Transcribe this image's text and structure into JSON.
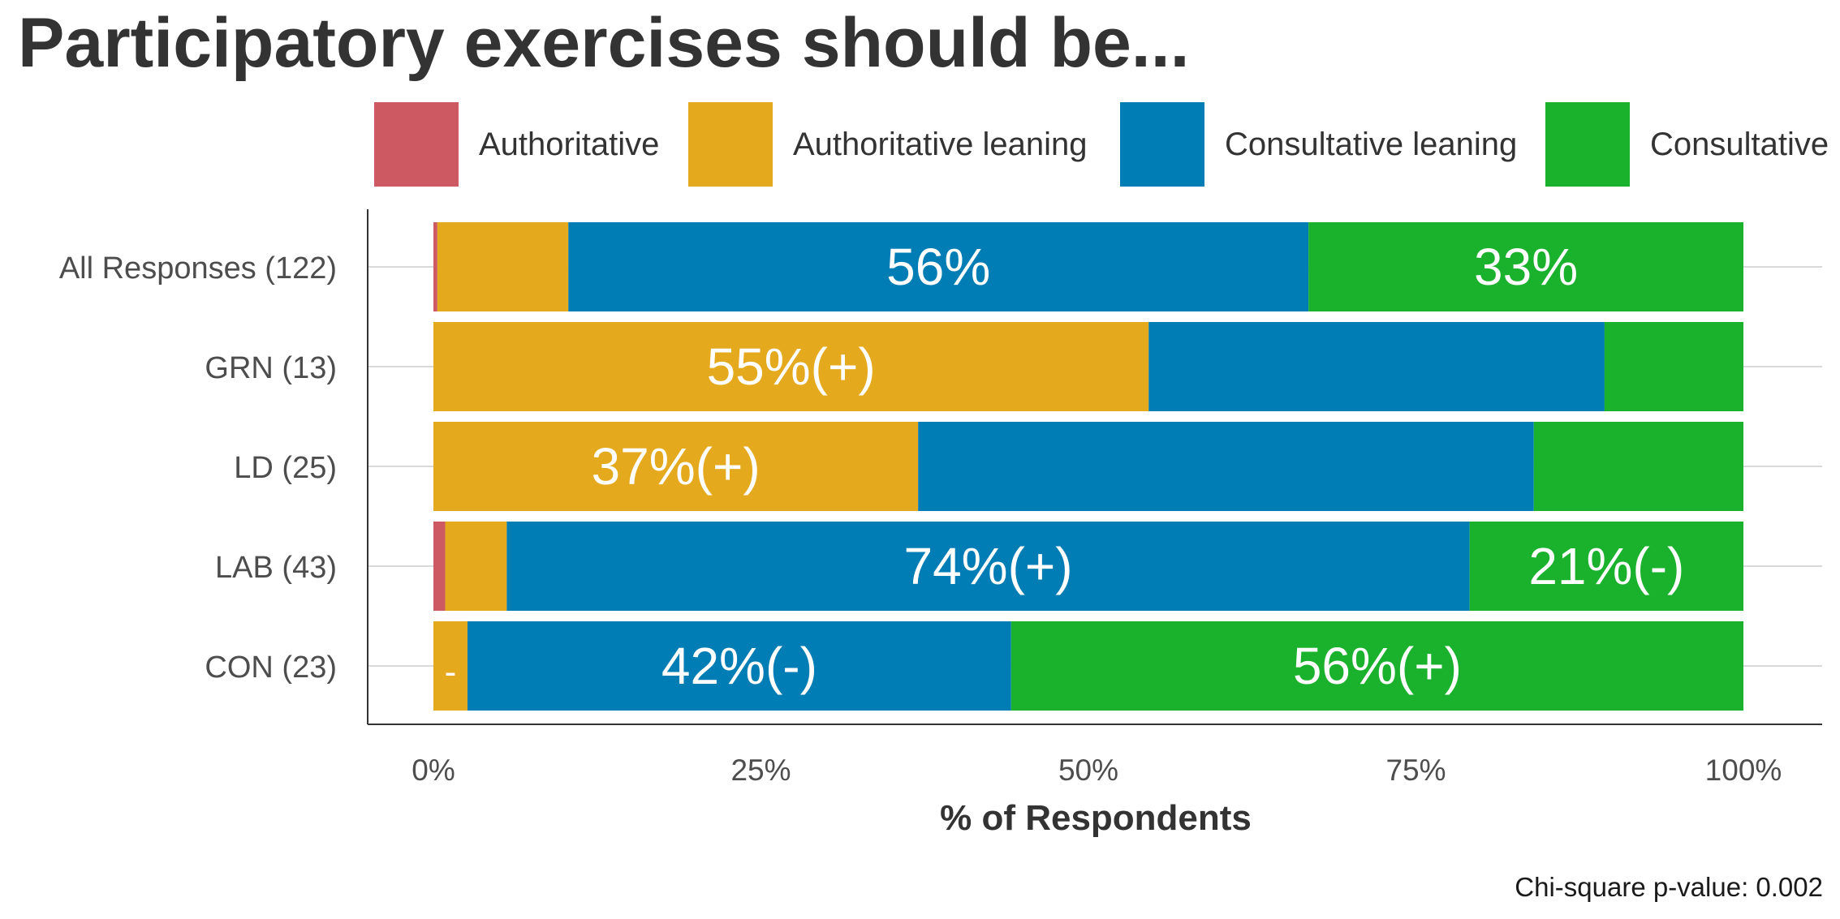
{
  "title": "Participatory exercises should be...",
  "footnote": "Chi-square p-value: 0.002",
  "chart_data": {
    "type": "bar",
    "orientation": "horizontal",
    "stacked": true,
    "title": "Participatory exercises should be...",
    "xlabel": "% of Respondents",
    "ylabel": "",
    "xlim": [
      0,
      100
    ],
    "x_ticks": [
      "0%",
      "25%",
      "50%",
      "75%",
      "100%"
    ],
    "legend_position": "top",
    "grid": true,
    "categories": [
      "All Responses (122)",
      "GRN (13)",
      "LD (25)",
      "LAB (43)",
      "CON (23)"
    ],
    "series": [
      {
        "name": "Authoritative",
        "color": "#cd5a62",
        "values": [
          0.3,
          0,
          0,
          0.9,
          0
        ],
        "labels": [
          "",
          "",
          "",
          "",
          ""
        ]
      },
      {
        "name": "Authoritative leaning",
        "color": "#e5a91e",
        "values": [
          10.0,
          54.6,
          37.0,
          4.7,
          2.6
        ],
        "labels": [
          "",
          "55%(+)",
          "37%(+)",
          "",
          "-"
        ]
      },
      {
        "name": "Consultative leaning",
        "color": "#007db4",
        "values": [
          56.5,
          34.8,
          47.0,
          73.5,
          41.5
        ],
        "labels": [
          "56%",
          "",
          "",
          "74%(+)",
          "42%(-)"
        ]
      },
      {
        "name": "Consultative",
        "color": "#1ab22d",
        "values": [
          33.2,
          10.6,
          16.0,
          20.9,
          55.9
        ],
        "labels": [
          "33%",
          "",
          "",
          "21%(-)",
          "56%(+)"
        ]
      }
    ]
  }
}
